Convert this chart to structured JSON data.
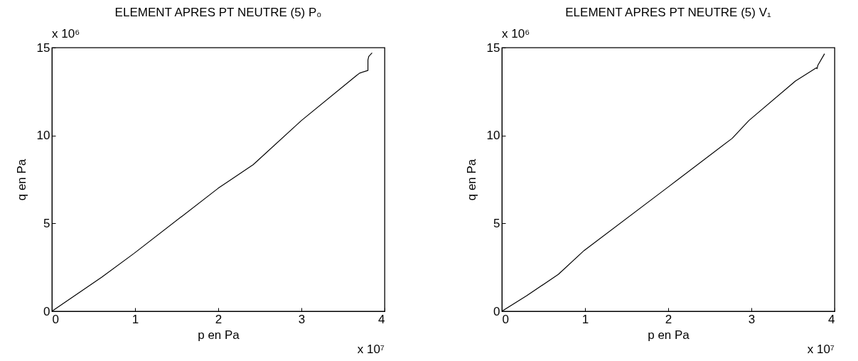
{
  "chart_data": [
    {
      "type": "line",
      "title": "ELEMENT APRES PT NEUTRE (5) P₀",
      "xlabel": "p en Pa",
      "ylabel": "q en Pa",
      "x": [
        0,
        0.6,
        0.99,
        2.0,
        2.42,
        3.0,
        3.66,
        3.7,
        3.8,
        3.8,
        3.81,
        3.85
      ],
      "series": [
        {
          "color": "#000000",
          "values": [
            0,
            1.94,
            3.3,
            7.0,
            8.34,
            10.85,
            13.4,
            13.55,
            13.7,
            14.3,
            14.5,
            14.7
          ]
        }
      ],
      "xlim": [
        0,
        4
      ],
      "ylim": [
        0,
        15
      ],
      "xticks": [
        0,
        1,
        2,
        3,
        4
      ],
      "yticks": [
        0,
        5,
        10,
        15
      ],
      "annotations": [
        "x 10⁶",
        "x 10⁷"
      ],
      "grid": false,
      "marker": "none",
      "line_style": "solid"
    },
    {
      "type": "line",
      "title": "ELEMENT APRES PT NEUTRE (5) V₁",
      "xlabel": "p en Pa",
      "ylabel": "q en Pa",
      "x": [
        0,
        0.3,
        0.68,
        0.99,
        1.98,
        2.77,
        2.97,
        3.53,
        3.78,
        3.79,
        3.8,
        3.88
      ],
      "series": [
        {
          "color": "#000000",
          "values": [
            0,
            0.89,
            2.1,
            3.46,
            7.0,
            9.84,
            10.85,
            13.1,
            13.85,
            13.8,
            14.0,
            14.65
          ]
        }
      ],
      "xlim": [
        0,
        4
      ],
      "ylim": [
        0,
        15
      ],
      "xticks": [
        0,
        1,
        2,
        3,
        4
      ],
      "yticks": [
        0,
        5,
        10,
        15
      ],
      "annotations": [
        "x 10⁶",
        "x 10⁷"
      ],
      "grid": false,
      "marker": "none",
      "line_style": "solid"
    }
  ]
}
